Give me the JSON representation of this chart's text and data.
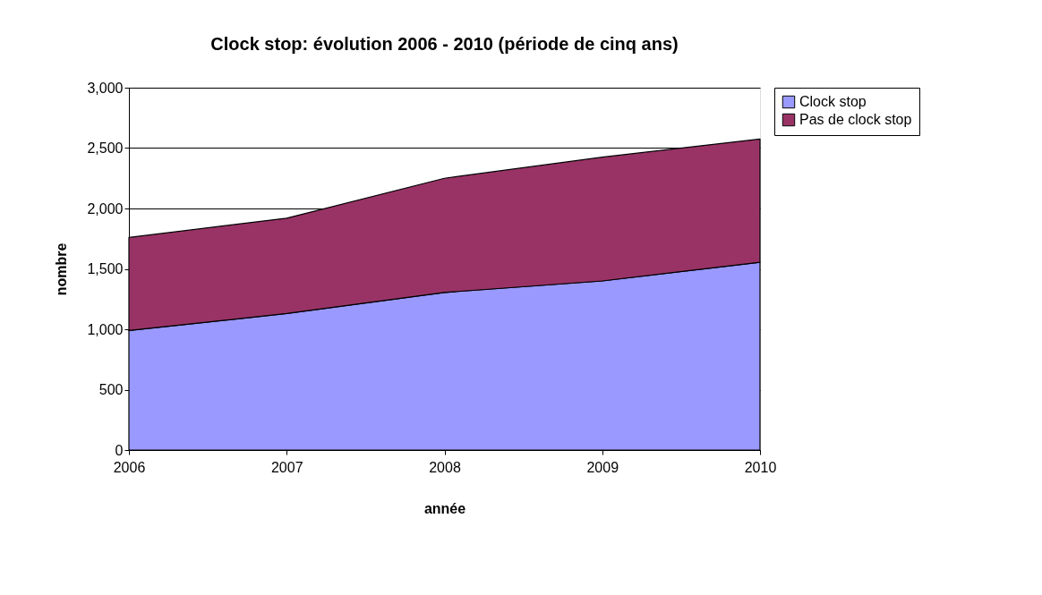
{
  "chart_data": {
    "type": "area",
    "title": "Clock stop: évolution 2006 - 2010 (période de cinq ans)",
    "xlabel": "année",
    "ylabel": "nombre",
    "x": [
      2006,
      2007,
      2008,
      2009,
      2010
    ],
    "xlim": [
      2006,
      2010
    ],
    "xticks": [
      2006,
      2007,
      2008,
      2009,
      2010
    ],
    "ylim": [
      0,
      3000
    ],
    "yticks": [
      {
        "value": 0,
        "label": "0"
      },
      {
        "value": 500,
        "label": "500"
      },
      {
        "value": 1000,
        "label": "1,000"
      },
      {
        "value": 1500,
        "label": "1,500"
      },
      {
        "value": 2000,
        "label": "2,000"
      },
      {
        "value": 2500,
        "label": "2,500"
      },
      {
        "value": 3000,
        "label": "3,000"
      }
    ],
    "stacked": true,
    "grid": "y",
    "legend": "right",
    "series": [
      {
        "name": "Clock stop",
        "color": "#9999ff",
        "values": [
          990,
          1130,
          1305,
          1400,
          1555
        ]
      },
      {
        "name": "Pas de clock stop",
        "color": "#993366",
        "values": [
          770,
          790,
          945,
          1025,
          1020
        ]
      }
    ]
  }
}
